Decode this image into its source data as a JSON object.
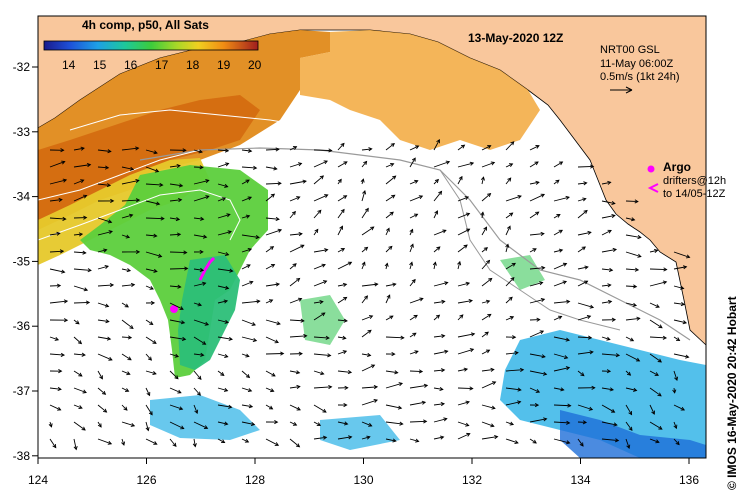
{
  "colorbar": {
    "title": "4h comp, p50, All Sats",
    "ticks": [
      "14",
      "15",
      "16",
      "17",
      "18",
      "19",
      "20"
    ]
  },
  "map": {
    "date_title": "13-May-2020 12Z",
    "gsl_title": "NRT00 GSL",
    "gsl_time": "11-May 06:00Z",
    "scale_text": "0.5m/s (1kt 24h)",
    "argo_label": "Argo",
    "drifters_line1": "drifters@12h",
    "drifters_line2": "to 14/05-12Z",
    "credit": "© IMOS 16-May-2020 20:42 Hobart",
    "lon_ticks": [
      "124",
      "126",
      "128",
      "130",
      "132",
      "134",
      "136"
    ],
    "lat_ticks": [
      "-32",
      "-33",
      "-34",
      "-35",
      "-36",
      "-37",
      "-38"
    ],
    "colors": {
      "land": "#f9c79c",
      "argo": "#ff00ff",
      "arrow": "#000000",
      "ssh_contour": "#9a9a9a"
    }
  }
}
